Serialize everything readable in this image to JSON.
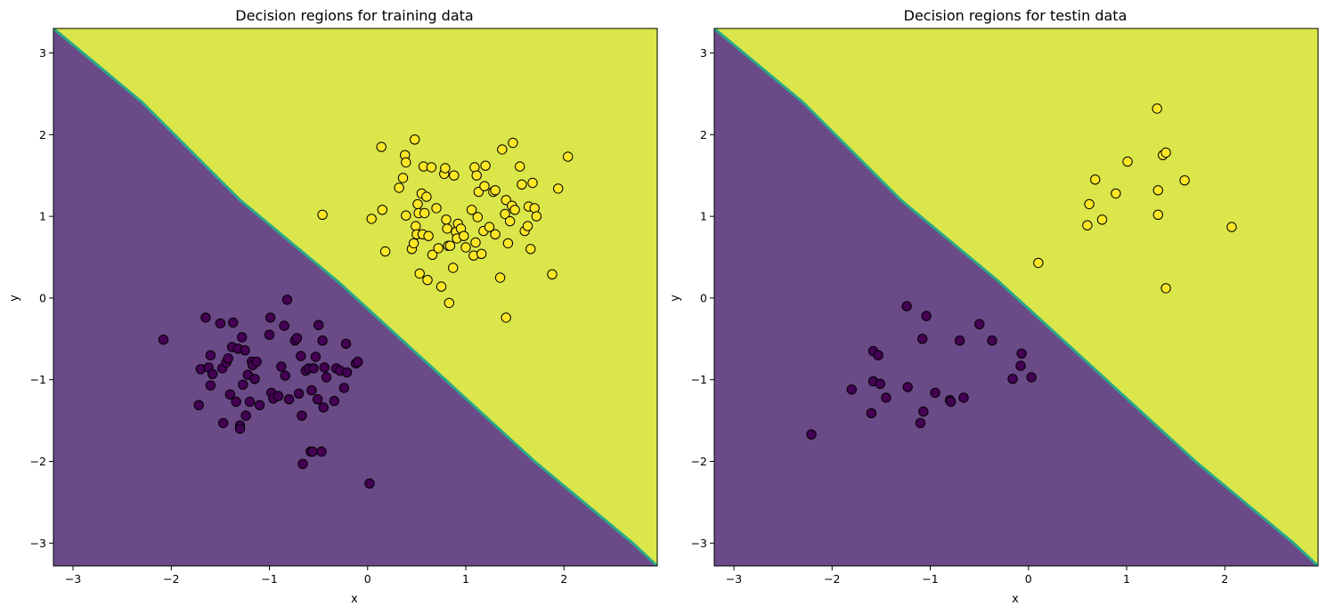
{
  "colors": {
    "class0": "#440154",
    "class1": "#fde725",
    "region0": "#6b4a88",
    "region1": "#dbe64a",
    "boundary": "#2aa88a",
    "axis": "#000000",
    "background": "#ffffff"
  },
  "chart_data": [
    {
      "type": "scatter",
      "title": "Decision regions for training data",
      "xlabel": "x",
      "ylabel": "y",
      "xlim": [
        -3.2,
        2.95
      ],
      "ylim": [
        -3.28,
        3.3
      ],
      "xticks": [
        -3,
        -2,
        -1,
        0,
        1,
        2
      ],
      "yticks": [
        -3,
        -2,
        -1,
        0,
        1,
        2,
        3
      ],
      "grid": false,
      "legend": "none",
      "decision_boundary": {
        "description": "staircase line y = -x + c",
        "points": [
          [
            -3.2,
            3.3
          ],
          [
            -2.3,
            2.4
          ],
          [
            -1.3,
            1.2
          ],
          [
            -0.3,
            0.2
          ],
          [
            0.7,
            -0.9
          ],
          [
            1.7,
            -2.0
          ],
          [
            2.7,
            -3.0
          ],
          [
            2.95,
            -3.28
          ]
        ]
      },
      "series": [
        {
          "class": 0,
          "points": [
            [
              -2.08,
              -0.51
            ],
            [
              -1.72,
              -1.31
            ],
            [
              -1.7,
              -0.87
            ],
            [
              -1.65,
              -0.24
            ],
            [
              -1.62,
              -0.85
            ],
            [
              -1.6,
              -0.7
            ],
            [
              -1.6,
              -1.07
            ],
            [
              -1.58,
              -0.93
            ],
            [
              -1.5,
              -0.31
            ],
            [
              -1.48,
              -0.86
            ],
            [
              -1.47,
              -1.53
            ],
            [
              -1.44,
              -0.79
            ],
            [
              -1.42,
              -0.74
            ],
            [
              -1.4,
              -1.18
            ],
            [
              -1.38,
              -0.6
            ],
            [
              -1.37,
              -0.3
            ],
            [
              -1.34,
              -1.27
            ],
            [
              -1.32,
              -0.62
            ],
            [
              -1.3,
              -1.56
            ],
            [
              -1.3,
              -1.6
            ],
            [
              -1.28,
              -0.48
            ],
            [
              -1.27,
              -1.06
            ],
            [
              -1.25,
              -0.64
            ],
            [
              -1.24,
              -1.44
            ],
            [
              -1.22,
              -0.94
            ],
            [
              -1.2,
              -1.27
            ],
            [
              -1.18,
              -0.78
            ],
            [
              -1.17,
              -0.82
            ],
            [
              -1.15,
              -0.99
            ],
            [
              -1.13,
              -0.78
            ],
            [
              -1.1,
              -1.31
            ],
            [
              -1.0,
              -0.45
            ],
            [
              -0.99,
              -0.24
            ],
            [
              -0.98,
              -1.16
            ],
            [
              -0.96,
              -1.23
            ],
            [
              -0.91,
              -1.2
            ],
            [
              -0.88,
              -0.84
            ],
            [
              -0.85,
              -0.34
            ],
            [
              -0.84,
              -0.95
            ],
            [
              -0.82,
              -0.02
            ],
            [
              -0.8,
              -1.24
            ],
            [
              -0.74,
              -0.52
            ],
            [
              -0.72,
              -0.49
            ],
            [
              -0.7,
              -1.17
            ],
            [
              -0.68,
              -0.71
            ],
            [
              -0.67,
              -1.44
            ],
            [
              -0.66,
              -2.03
            ],
            [
              -0.63,
              -0.89
            ],
            [
              -0.6,
              -0.86
            ],
            [
              -0.58,
              -1.88
            ],
            [
              -0.57,
              -1.13
            ],
            [
              -0.56,
              -1.88
            ],
            [
              -0.55,
              -0.86
            ],
            [
              -0.53,
              -0.72
            ],
            [
              -0.51,
              -1.24
            ],
            [
              -0.5,
              -0.33
            ],
            [
              -0.47,
              -1.88
            ],
            [
              -0.46,
              -0.52
            ],
            [
              -0.45,
              -1.34
            ],
            [
              -0.44,
              -0.85
            ],
            [
              -0.42,
              -0.97
            ],
            [
              -0.34,
              -1.26
            ],
            [
              -0.32,
              -0.86
            ],
            [
              -0.28,
              -0.89
            ],
            [
              -0.24,
              -1.1
            ],
            [
              -0.22,
              -0.56
            ],
            [
              -0.21,
              -0.91
            ],
            [
              -0.12,
              -0.8
            ],
            [
              -0.1,
              -0.78
            ],
            [
              0.02,
              -2.27
            ]
          ]
        },
        {
          "class": 1,
          "points": [
            [
              -0.46,
              1.02
            ],
            [
              0.04,
              0.97
            ],
            [
              0.14,
              1.85
            ],
            [
              0.15,
              1.08
            ],
            [
              0.18,
              0.57
            ],
            [
              0.32,
              1.35
            ],
            [
              0.36,
              1.47
            ],
            [
              0.38,
              1.75
            ],
            [
              0.39,
              1.01
            ],
            [
              0.39,
              1.66
            ],
            [
              0.45,
              0.6
            ],
            [
              0.47,
              0.67
            ],
            [
              0.48,
              1.94
            ],
            [
              0.49,
              0.88
            ],
            [
              0.5,
              0.78
            ],
            [
              0.51,
              1.15
            ],
            [
              0.52,
              1.04
            ],
            [
              0.53,
              0.3
            ],
            [
              0.55,
              1.28
            ],
            [
              0.56,
              0.78
            ],
            [
              0.57,
              1.61
            ],
            [
              0.58,
              1.04
            ],
            [
              0.6,
              1.24
            ],
            [
              0.61,
              0.22
            ],
            [
              0.62,
              0.76
            ],
            [
              0.65,
              1.6
            ],
            [
              0.66,
              0.53
            ],
            [
              0.7,
              1.1
            ],
            [
              0.72,
              0.61
            ],
            [
              0.75,
              0.14
            ],
            [
              0.78,
              1.52
            ],
            [
              0.79,
              1.59
            ],
            [
              0.8,
              0.96
            ],
            [
              0.81,
              0.85
            ],
            [
              0.82,
              0.64
            ],
            [
              0.83,
              -0.06
            ],
            [
              0.84,
              0.64
            ],
            [
              0.87,
              0.37
            ],
            [
              0.88,
              1.5
            ],
            [
              0.9,
              0.81
            ],
            [
              0.91,
              0.73
            ],
            [
              0.92,
              0.91
            ],
            [
              0.95,
              0.85
            ],
            [
              0.98,
              0.76
            ],
            [
              1.0,
              0.62
            ],
            [
              1.06,
              1.08
            ],
            [
              1.08,
              0.52
            ],
            [
              1.09,
              1.6
            ],
            [
              1.1,
              0.68
            ],
            [
              1.11,
              1.5
            ],
            [
              1.12,
              0.99
            ],
            [
              1.13,
              1.3
            ],
            [
              1.16,
              0.54
            ],
            [
              1.18,
              0.82
            ],
            [
              1.19,
              1.37
            ],
            [
              1.2,
              1.62
            ],
            [
              1.24,
              0.87
            ],
            [
              1.28,
              1.3
            ],
            [
              1.3,
              1.32
            ],
            [
              1.3,
              0.78
            ],
            [
              1.35,
              0.25
            ],
            [
              1.37,
              1.82
            ],
            [
              1.4,
              1.03
            ],
            [
              1.41,
              -0.24
            ],
            [
              1.41,
              1.2
            ],
            [
              1.43,
              0.67
            ],
            [
              1.45,
              0.94
            ],
            [
              1.47,
              1.13
            ],
            [
              1.48,
              1.9
            ],
            [
              1.5,
              1.08
            ],
            [
              1.55,
              1.61
            ],
            [
              1.57,
              1.39
            ],
            [
              1.6,
              0.82
            ],
            [
              1.63,
              0.88
            ],
            [
              1.64,
              1.12
            ],
            [
              1.66,
              0.6
            ],
            [
              1.68,
              1.41
            ],
            [
              1.7,
              1.1
            ],
            [
              1.72,
              1.0
            ],
            [
              1.88,
              0.29
            ],
            [
              1.94,
              1.34
            ],
            [
              2.04,
              1.73
            ]
          ]
        }
      ]
    },
    {
      "type": "scatter",
      "title": "Decision regions for testin data",
      "xlabel": "x",
      "ylabel": "y",
      "xlim": [
        -3.2,
        2.95
      ],
      "ylim": [
        -3.28,
        3.3
      ],
      "xticks": [
        -3,
        -2,
        -1,
        0,
        1,
        2
      ],
      "yticks": [
        -3,
        -2,
        -1,
        0,
        1,
        2,
        3
      ],
      "grid": false,
      "legend": "none",
      "decision_boundary": {
        "description": "staircase line y = -x + c",
        "points": [
          [
            -3.2,
            3.3
          ],
          [
            -2.3,
            2.4
          ],
          [
            -1.3,
            1.2
          ],
          [
            -0.3,
            0.2
          ],
          [
            0.7,
            -0.9
          ],
          [
            1.7,
            -2.0
          ],
          [
            2.7,
            -3.0
          ],
          [
            2.95,
            -3.28
          ]
        ]
      },
      "series": [
        {
          "class": 0,
          "points": [
            [
              -2.21,
              -1.67
            ],
            [
              -1.8,
              -1.12
            ],
            [
              -1.6,
              -1.41
            ],
            [
              -1.58,
              -0.65
            ],
            [
              -1.58,
              -1.02
            ],
            [
              -1.53,
              -0.7
            ],
            [
              -1.51,
              -1.05
            ],
            [
              -1.45,
              -1.22
            ],
            [
              -1.24,
              -0.1
            ],
            [
              -1.23,
              -1.09
            ],
            [
              -1.1,
              -1.53
            ],
            [
              -1.08,
              -0.5
            ],
            [
              -1.07,
              -1.39
            ],
            [
              -1.04,
              -0.22
            ],
            [
              -0.95,
              -1.16
            ],
            [
              -0.8,
              -1.25
            ],
            [
              -0.79,
              -1.27
            ],
            [
              -0.7,
              -0.52
            ],
            [
              -0.66,
              -1.22
            ],
            [
              -0.5,
              -0.32
            ],
            [
              -0.37,
              -0.52
            ],
            [
              -0.16,
              -0.99
            ],
            [
              -0.08,
              -0.83
            ],
            [
              -0.07,
              -0.68
            ],
            [
              0.03,
              -0.97
            ]
          ]
        },
        {
          "class": 1,
          "points": [
            [
              0.1,
              0.43
            ],
            [
              0.6,
              0.89
            ],
            [
              0.62,
              1.15
            ],
            [
              0.68,
              1.45
            ],
            [
              0.75,
              0.96
            ],
            [
              0.89,
              1.28
            ],
            [
              1.01,
              1.67
            ],
            [
              1.31,
              2.32
            ],
            [
              1.32,
              1.32
            ],
            [
              1.32,
              1.02
            ],
            [
              1.37,
              1.75
            ],
            [
              1.4,
              1.78
            ],
            [
              1.4,
              0.12
            ],
            [
              1.59,
              1.44
            ],
            [
              2.07,
              0.87
            ]
          ]
        }
      ]
    }
  ]
}
